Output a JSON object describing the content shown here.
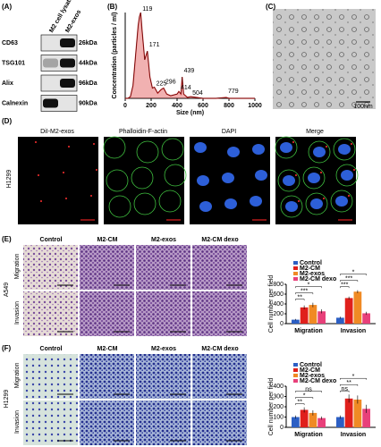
{
  "panels": {
    "A": {
      "label": "(A)",
      "lanes": [
        "M2 cell lysates",
        "M2-exos"
      ],
      "rows": [
        {
          "name": "CD63",
          "size": "26kDa"
        },
        {
          "name": "TSG101",
          "size": "44kDa"
        },
        {
          "name": "Alix",
          "size": "96kDa"
        },
        {
          "name": "Calnexin",
          "size": "90kDa"
        }
      ]
    },
    "C": {
      "label": "(C)",
      "scale": "100nm"
    },
    "D": {
      "label": "(D)",
      "cell_line": "H1299",
      "columns": [
        "DiI-M2-exos",
        "Phalloidin-F-actin",
        "DAPI",
        "Merge"
      ]
    },
    "E": {
      "label": "(E)",
      "cell_line": "A549",
      "columns": [
        "Control",
        "M2-CM",
        "M2-exos",
        "M2-CM dexo"
      ],
      "rows": [
        "Migration",
        "Invasion"
      ]
    },
    "F": {
      "label": "(F)",
      "cell_line": "H1299",
      "columns": [
        "Control",
        "M2-CM",
        "M2-exos",
        "M2-CM dexo"
      ],
      "rows": [
        "Migration",
        "Invasion"
      ]
    }
  },
  "chart_data": [
    {
      "type": "line",
      "label": "(B)",
      "x_label": "Size (nm)",
      "y_label": "Concentration (particles / ml)",
      "color": "#d62020",
      "x": [
        0,
        20,
        40,
        60,
        80,
        100,
        110,
        119,
        130,
        150,
        171,
        190,
        210,
        225,
        250,
        275,
        296,
        320,
        350,
        400,
        414,
        430,
        439,
        450,
        480,
        504,
        550,
        600,
        700,
        779,
        800,
        900,
        1000
      ],
      "values": [
        0,
        0,
        0.02,
        0.15,
        0.5,
        0.85,
        0.95,
        1.0,
        0.8,
        0.45,
        0.55,
        0.25,
        0.12,
        0.13,
        0.06,
        0.1,
        0.12,
        0.05,
        0.03,
        0.05,
        0.08,
        0.05,
        0.25,
        0.05,
        0.01,
        0.02,
        0.01,
        0,
        0,
        0.01,
        0,
        0,
        0
      ],
      "peaks": [
        119,
        171,
        225,
        296,
        414,
        439,
        504,
        779
      ],
      "peak_color": "#2a5db0",
      "xlim": [
        0,
        1000
      ],
      "xticks": [
        0,
        200,
        400,
        600,
        800,
        1000
      ],
      "ylim": [
        0,
        1
      ]
    },
    {
      "type": "bar",
      "y_label": "Cell number per field",
      "categories": [
        "Migration",
        "Invasion"
      ],
      "series": [
        {
          "name": "Control",
          "color": "#2c5fc4",
          "values": [
            80,
            120
          ],
          "errors": [
            15,
            20
          ]
        },
        {
          "name": "M2-CM",
          "color": "#e0201c",
          "values": [
            330,
            520
          ],
          "errors": [
            40,
            30
          ]
        },
        {
          "name": "M2-exos",
          "color": "#f08a24",
          "values": [
            380,
            650
          ],
          "errors": [
            45,
            30
          ]
        },
        {
          "name": "M2-CM dexo",
          "color": "#e8407a",
          "values": [
            250,
            210
          ],
          "errors": [
            40,
            30
          ]
        }
      ],
      "annotations": [
        [
          "**",
          "***",
          "*"
        ],
        [
          "***",
          "***",
          "*"
        ]
      ],
      "ylim": [
        0,
        800
      ],
      "yticks": [
        0,
        200,
        400,
        600,
        800
      ]
    },
    {
      "type": "bar",
      "y_label": "Cell number per field",
      "categories": [
        "Migration",
        "Invasion"
      ],
      "series": [
        {
          "name": "Control",
          "color": "#2c5fc4",
          "values": [
            100,
            100
          ],
          "errors": [
            15,
            15
          ]
        },
        {
          "name": "M2-CM",
          "color": "#e0201c",
          "values": [
            170,
            280
          ],
          "errors": [
            25,
            40
          ]
        },
        {
          "name": "M2-exos",
          "color": "#f08a24",
          "values": [
            140,
            270
          ],
          "errors": [
            25,
            40
          ]
        },
        {
          "name": "M2-CM dexo",
          "color": "#e8407a",
          "values": [
            90,
            180
          ],
          "errors": [
            15,
            40
          ]
        }
      ],
      "annotations": [
        [
          "**",
          "*",
          "ns"
        ],
        [
          "ns",
          "**",
          "*"
        ]
      ],
      "ylim": [
        0,
        400
      ],
      "yticks": [
        0,
        100,
        200,
        300,
        400
      ]
    }
  ]
}
